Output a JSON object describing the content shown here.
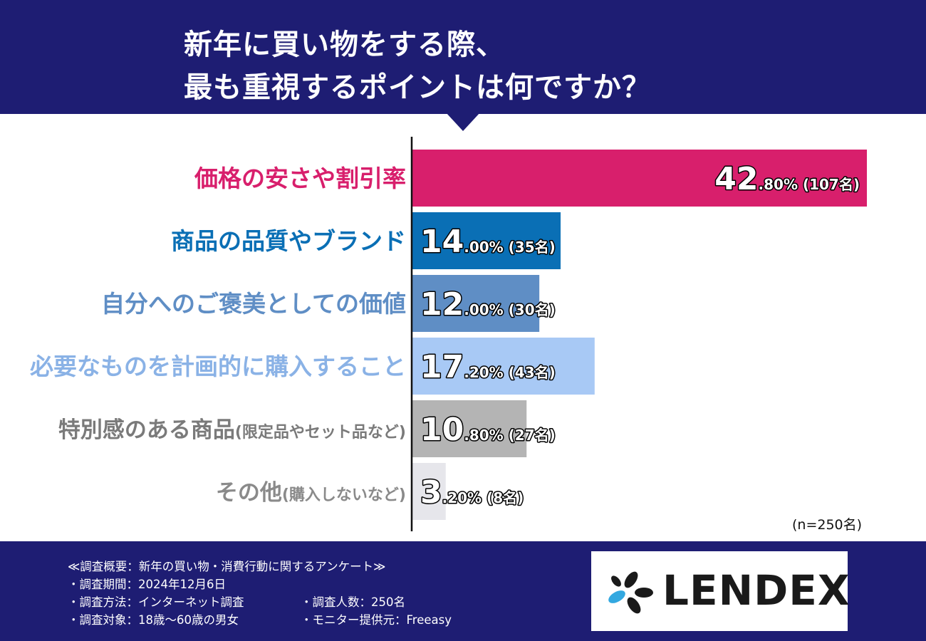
{
  "header": {
    "title_line1": "新年に買い物をする際、",
    "title_line2": "最も重視するポイントは何ですか？"
  },
  "chart_data": {
    "type": "bar",
    "orientation": "horizontal",
    "categories": [
      {
        "main": "価格の安さや割引率",
        "sub": ""
      },
      {
        "main": "商品の品質やブランド",
        "sub": ""
      },
      {
        "main": "自分へのご褒美としての価値",
        "sub": ""
      },
      {
        "main": "必要なものを計画的に購入すること",
        "sub": ""
      },
      {
        "main": "特別感のある商品",
        "sub": "(限定品やセット品など)"
      },
      {
        "main": "その他",
        "sub": "(購入しないなど)"
      }
    ],
    "values": [
      42.8,
      14.0,
      12.0,
      17.2,
      10.8,
      3.2
    ],
    "value_labels": [
      {
        "big": "42",
        "small": ".80% (107名)"
      },
      {
        "big": "14",
        "small": ".00% (35名)"
      },
      {
        "big": "12",
        "small": ".00% (30名)"
      },
      {
        "big": "17",
        "small": ".20% (43名)"
      },
      {
        "big": "10",
        "small": ".80% (27名)"
      },
      {
        "big": "3",
        "small": ".20% (8名)"
      }
    ],
    "bar_colors": [
      "#d81f6c",
      "#0a6fb5",
      "#5f8ec5",
      "#a8c9f5",
      "#b4b4b4",
      "#e6e6eb"
    ],
    "label_colors": [
      "#d81f6c",
      "#0a6fb5",
      "#5f8ec5",
      "#8ab2e6",
      "#7a7a7a",
      "#8a8a8a"
    ],
    "xlim": [
      0,
      43
    ],
    "grid": false,
    "n_label": "(n=250名)"
  },
  "footer": {
    "survey": "≪調査概要：新年の買い物・消費行動に関するアンケート≫",
    "period": "・調査期間：2024年12月6日",
    "method": "・調査方法：インターネット調査",
    "target": "・調査対象：18歳〜60歳の男女",
    "count": "・調査人数：250名",
    "monitor": "・モニター提供元：Freeasy"
  },
  "logo": {
    "text": "LENDEX",
    "mark_colors": [
      "#1a1a1a",
      "#33a8e0"
    ]
  }
}
